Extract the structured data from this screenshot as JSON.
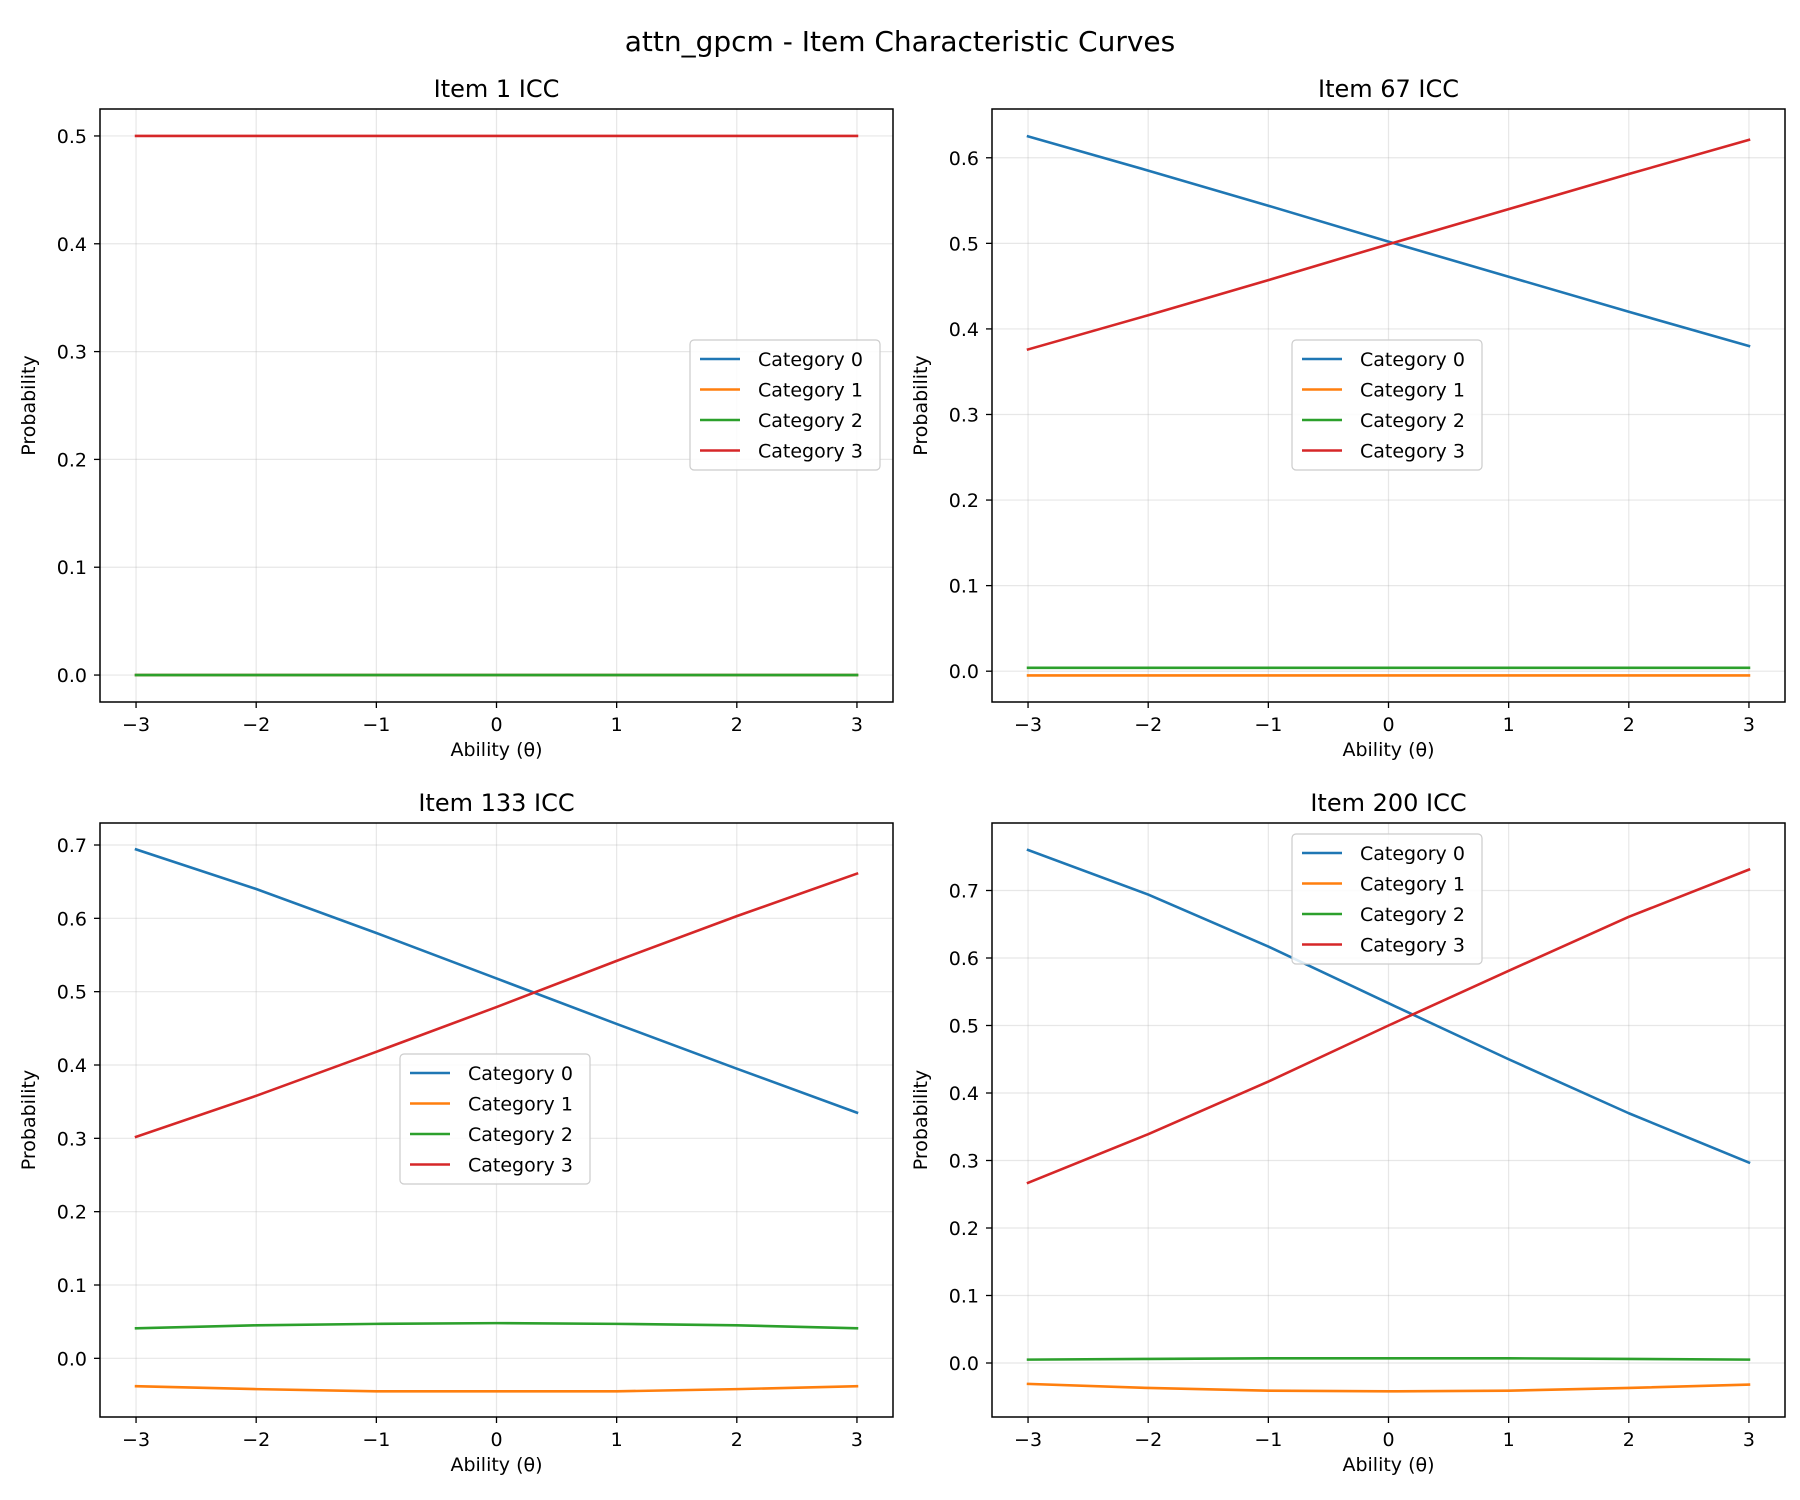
{
  "figure": {
    "suptitle": "attn_gpcm - Item Characteristic Curves"
  },
  "colors": {
    "Category 0": "#1f77b4",
    "Category 1": "#ff7f0e",
    "Category 2": "#2ca02c",
    "Category 3": "#d62728"
  },
  "chart_data": [
    {
      "type": "line",
      "title": "Item 1 ICC",
      "xlabel": "Ability (θ)",
      "ylabel": "Probability",
      "xlim": [
        -3.3,
        3.3
      ],
      "ylim": [
        -0.025,
        0.525
      ],
      "xticks": [
        -3,
        -2,
        -1,
        0,
        1,
        2,
        3
      ],
      "xtick_labels": [
        "−3",
        "−2",
        "−1",
        "0",
        "1",
        "2",
        "3"
      ],
      "yticks": [
        0.0,
        0.1,
        0.2,
        0.3,
        0.4,
        0.5
      ],
      "ytick_labels": [
        "0.0",
        "0.1",
        "0.2",
        "0.3",
        "0.4",
        "0.5"
      ],
      "grid": true,
      "legend": {
        "placement": "center-right",
        "entries": [
          "Category 0",
          "Category 1",
          "Category 2",
          "Category 3"
        ]
      },
      "x": [
        -3,
        -2,
        -1,
        0,
        1,
        2,
        3
      ],
      "series": [
        {
          "name": "Category 0",
          "values": [
            0.0,
            0.0,
            0.0,
            0.0,
            0.0,
            0.0,
            0.0
          ]
        },
        {
          "name": "Category 1",
          "values": [
            0.0,
            0.0,
            0.0,
            0.0,
            0.0,
            0.0,
            0.0
          ]
        },
        {
          "name": "Category 2",
          "values": [
            0.0,
            0.0,
            0.0,
            0.0,
            0.0,
            0.0,
            0.0
          ]
        },
        {
          "name": "Category 3",
          "values": [
            0.5,
            0.5,
            0.5,
            0.5,
            0.5,
            0.5,
            0.5
          ]
        }
      ]
    },
    {
      "type": "line",
      "title": "Item 67 ICC",
      "xlabel": "Ability (θ)",
      "ylabel": "Probability",
      "xlim": [
        -3.3,
        3.3
      ],
      "ylim": [
        -0.036,
        0.657
      ],
      "xticks": [
        -3,
        -2,
        -1,
        0,
        1,
        2,
        3
      ],
      "xtick_labels": [
        "−3",
        "−2",
        "−1",
        "0",
        "1",
        "2",
        "3"
      ],
      "yticks": [
        0.0,
        0.1,
        0.2,
        0.3,
        0.4,
        0.5,
        0.6
      ],
      "ytick_labels": [
        "0.0",
        "0.1",
        "0.2",
        "0.3",
        "0.4",
        "0.5",
        "0.6"
      ],
      "grid": true,
      "legend": {
        "placement": "center",
        "entries": [
          "Category 0",
          "Category 1",
          "Category 2",
          "Category 3"
        ]
      },
      "x": [
        -3,
        -2,
        -1,
        0,
        1,
        2,
        3
      ],
      "series": [
        {
          "name": "Category 0",
          "values": [
            0.625,
            0.585,
            0.544,
            0.502,
            0.461,
            0.42,
            0.38
          ]
        },
        {
          "name": "Category 1",
          "values": [
            -0.005,
            -0.005,
            -0.005,
            -0.005,
            -0.005,
            -0.005,
            -0.005
          ]
        },
        {
          "name": "Category 2",
          "values": [
            0.004,
            0.004,
            0.004,
            0.004,
            0.004,
            0.004,
            0.004
          ]
        },
        {
          "name": "Category 3",
          "values": [
            0.376,
            0.416,
            0.457,
            0.499,
            0.54,
            0.581,
            0.621
          ]
        }
      ]
    },
    {
      "type": "line",
      "title": "Item 133 ICC",
      "xlabel": "Ability (θ)",
      "ylabel": "Probability",
      "xlim": [
        -3.3,
        3.3
      ],
      "ylim": [
        -0.08,
        0.73
      ],
      "xticks": [
        -3,
        -2,
        -1,
        0,
        1,
        2,
        3
      ],
      "xtick_labels": [
        "−3",
        "−2",
        "−1",
        "0",
        "1",
        "2",
        "3"
      ],
      "yticks": [
        0.0,
        0.1,
        0.2,
        0.3,
        0.4,
        0.5,
        0.6,
        0.7
      ],
      "ytick_labels": [
        "0.0",
        "0.1",
        "0.2",
        "0.3",
        "0.4",
        "0.5",
        "0.6",
        "0.7"
      ],
      "grid": true,
      "legend": {
        "placement": "center",
        "entries": [
          "Category 0",
          "Category 1",
          "Category 2",
          "Category 3"
        ]
      },
      "x": [
        -3,
        -2,
        -1,
        0,
        1,
        2,
        3
      ],
      "series": [
        {
          "name": "Category 0",
          "values": [
            0.694,
            0.64,
            0.58,
            0.518,
            0.456,
            0.395,
            0.335
          ]
        },
        {
          "name": "Category 1",
          "values": [
            -0.038,
            -0.042,
            -0.045,
            -0.045,
            -0.045,
            -0.042,
            -0.038
          ]
        },
        {
          "name": "Category 2",
          "values": [
            0.041,
            0.045,
            0.047,
            0.048,
            0.047,
            0.045,
            0.041
          ]
        },
        {
          "name": "Category 3",
          "values": [
            0.302,
            0.358,
            0.418,
            0.479,
            0.542,
            0.603,
            0.661
          ]
        }
      ]
    },
    {
      "type": "line",
      "title": "Item 200 ICC",
      "xlabel": "Ability (θ)",
      "ylabel": "Probability",
      "xlim": [
        -3.3,
        3.3
      ],
      "ylim": [
        -0.08,
        0.8
      ],
      "xticks": [
        -3,
        -2,
        -1,
        0,
        1,
        2,
        3
      ],
      "xtick_labels": [
        "−3",
        "−2",
        "−1",
        "0",
        "1",
        "2",
        "3"
      ],
      "yticks": [
        0.0,
        0.1,
        0.2,
        0.3,
        0.4,
        0.5,
        0.6,
        0.7
      ],
      "ytick_labels": [
        "0.0",
        "0.1",
        "0.2",
        "0.3",
        "0.4",
        "0.5",
        "0.6",
        "0.7"
      ],
      "grid": true,
      "legend": {
        "placement": "top-center",
        "entries": [
          "Category 0",
          "Category 1",
          "Category 2",
          "Category 3"
        ]
      },
      "x": [
        -3,
        -2,
        -1,
        0,
        1,
        2,
        3
      ],
      "series": [
        {
          "name": "Category 0",
          "values": [
            0.76,
            0.694,
            0.617,
            0.533,
            0.45,
            0.37,
            0.297
          ]
        },
        {
          "name": "Category 1",
          "values": [
            -0.031,
            -0.037,
            -0.041,
            -0.042,
            -0.041,
            -0.037,
            -0.032
          ]
        },
        {
          "name": "Category 2",
          "values": [
            0.005,
            0.006,
            0.007,
            0.007,
            0.007,
            0.006,
            0.005
          ]
        },
        {
          "name": "Category 3",
          "values": [
            0.267,
            0.339,
            0.417,
            0.5,
            0.581,
            0.661,
            0.731
          ]
        }
      ]
    }
  ]
}
